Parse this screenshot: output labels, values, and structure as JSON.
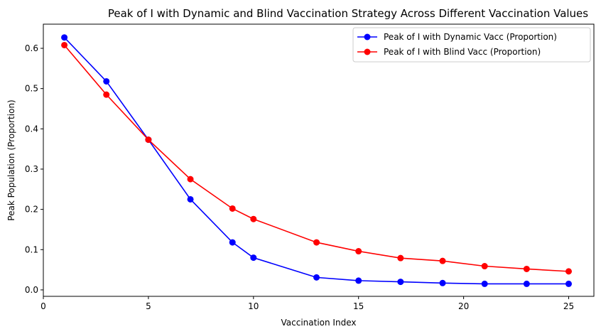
{
  "chart_data": {
    "type": "line",
    "title": "Peak of I with Dynamic and Blind Vaccination Strategy Across Different Vaccination Values",
    "xlabel": "Vaccination Index",
    "ylabel": "Peak Population (Proportion)",
    "xlim": [
      0,
      26.2
    ],
    "ylim": [
      -0.016,
      0.66
    ],
    "xticks": [
      0,
      5,
      10,
      15,
      20,
      25
    ],
    "yticks": [
      0.0,
      0.1,
      0.2,
      0.3,
      0.4,
      0.5,
      0.6
    ],
    "xtick_labels": [
      "0",
      "5",
      "10",
      "15",
      "20",
      "25"
    ],
    "ytick_labels": [
      "0.0",
      "0.1",
      "0.2",
      "0.3",
      "0.4",
      "0.5",
      "0.6"
    ],
    "grid": false,
    "legend_position": "top-right",
    "series": [
      {
        "name": "Peak of I with Dynamic Vacc (Proportion)",
        "color": "#0000ff",
        "x": [
          1,
          3,
          5,
          7,
          9,
          10,
          13,
          15,
          17,
          19,
          21,
          23,
          25
        ],
        "y": [
          0.627,
          0.518,
          0.373,
          0.225,
          0.118,
          0.08,
          0.031,
          0.023,
          0.02,
          0.017,
          0.015,
          0.015,
          0.015
        ]
      },
      {
        "name": "Peak of I with Blind Vacc (Proportion)",
        "color": "#ff0000",
        "x": [
          1,
          3,
          5,
          7,
          9,
          10,
          13,
          15,
          17,
          19,
          21,
          23,
          25
        ],
        "y": [
          0.608,
          0.485,
          0.373,
          0.275,
          0.202,
          0.176,
          0.118,
          0.096,
          0.079,
          0.072,
          0.059,
          0.052,
          0.046
        ]
      }
    ]
  }
}
